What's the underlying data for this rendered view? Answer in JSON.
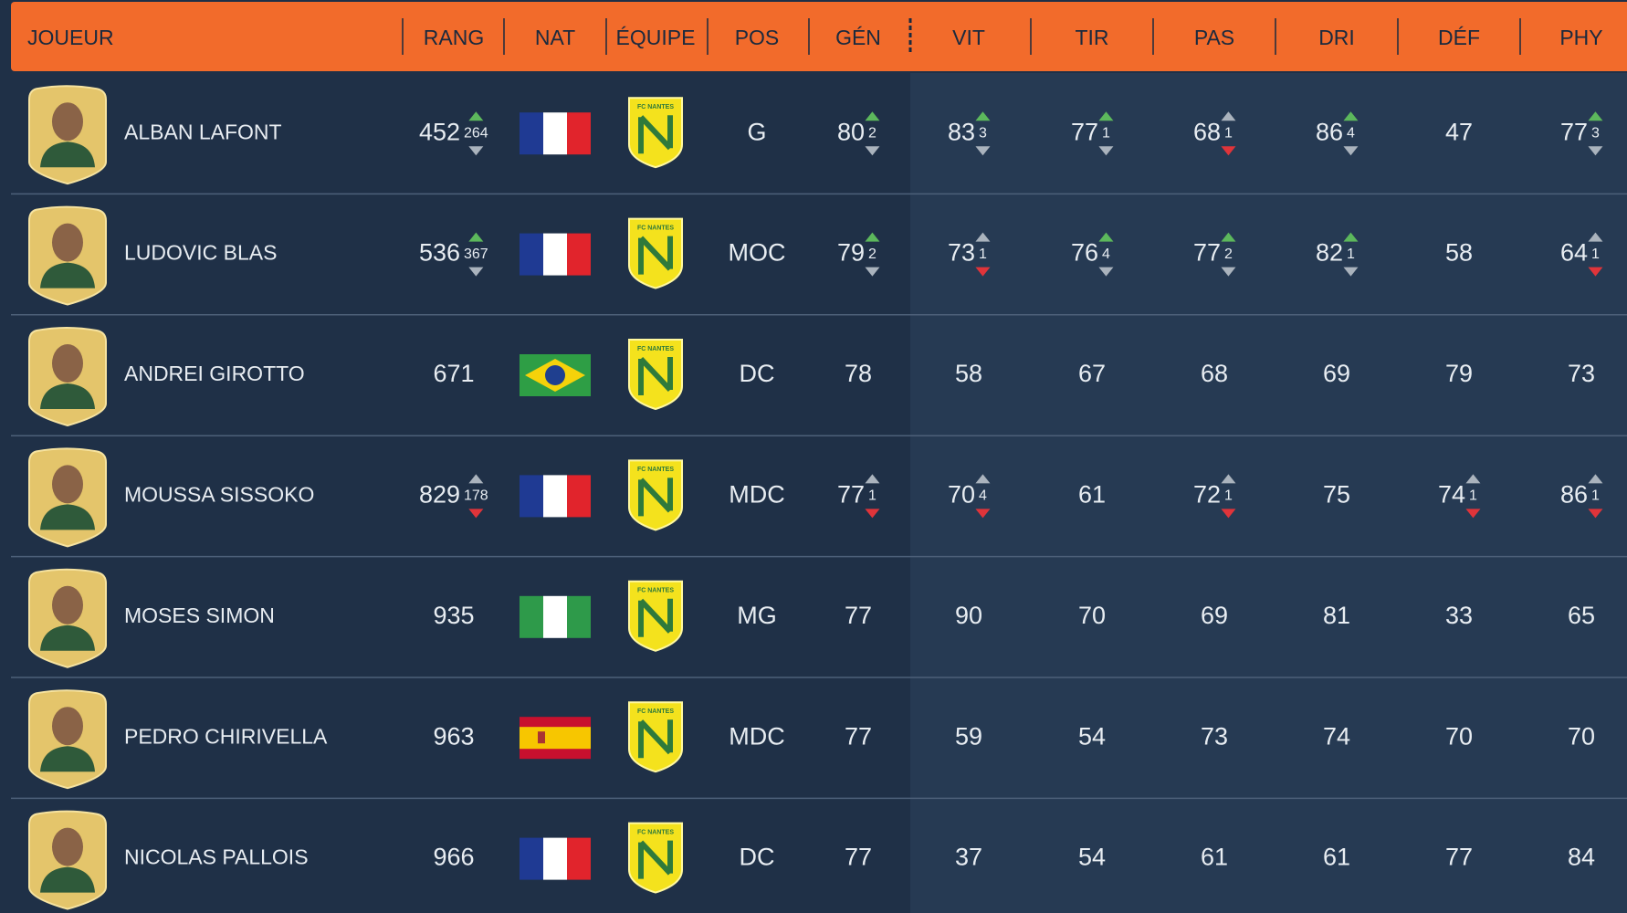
{
  "table": {
    "columns": [
      "JOUEUR",
      "RANG",
      "NAT",
      "ÉQUIPE",
      "POS",
      "GÉN",
      "VIT",
      "TIR",
      "PAS",
      "DRI",
      "DÉF",
      "PHY"
    ],
    "rows": [
      {
        "name": "ALBAN LAFONT",
        "rank": {
          "value": 452,
          "change": 264,
          "trend": "up"
        },
        "club": "FC NANTES",
        "position": "G",
        "ratings": [
          {
            "value": 80,
            "change": 2,
            "trend": "up"
          },
          {
            "value": 83,
            "change": 3,
            "trend": "up"
          },
          {
            "value": 77,
            "change": 1,
            "trend": "up"
          },
          {
            "value": 68,
            "change": 1,
            "trend": "down"
          },
          {
            "value": 86,
            "change": 4,
            "trend": "up"
          },
          {
            "value": 47
          },
          {
            "value": 77,
            "change": 3,
            "trend": "up"
          }
        ]
      },
      {
        "name": "LUDOVIC BLAS",
        "rank": {
          "value": 536,
          "change": 367,
          "trend": "up"
        },
        "club": "FC NANTES",
        "position": "MOC",
        "ratings": [
          {
            "value": 79,
            "change": 2,
            "trend": "up"
          },
          {
            "value": 73,
            "change": 1,
            "trend": "down"
          },
          {
            "value": 76,
            "change": 4,
            "trend": "up"
          },
          {
            "value": 77,
            "change": 2,
            "trend": "up"
          },
          {
            "value": 82,
            "change": 1,
            "trend": "up"
          },
          {
            "value": 58
          },
          {
            "value": 64,
            "change": 1,
            "trend": "down"
          }
        ]
      },
      {
        "name": "ANDREI GIROTTO",
        "rank": {
          "value": 671
        },
        "club": "FC NANTES",
        "position": "DC",
        "ratings": [
          {
            "value": 78
          },
          {
            "value": 58
          },
          {
            "value": 67
          },
          {
            "value": 68
          },
          {
            "value": 69
          },
          {
            "value": 79
          },
          {
            "value": 73
          }
        ]
      },
      {
        "name": "MOUSSA SISSOKO",
        "rank": {
          "value": 829,
          "change": 178,
          "trend": "down"
        },
        "club": "FC NANTES",
        "position": "MDC",
        "ratings": [
          {
            "value": 77,
            "change": 1,
            "trend": "down"
          },
          {
            "value": 70,
            "change": 4,
            "trend": "down"
          },
          {
            "value": 61
          },
          {
            "value": 72,
            "change": 1,
            "trend": "down"
          },
          {
            "value": 75
          },
          {
            "value": 74,
            "change": 1,
            "trend": "down"
          },
          {
            "value": 86,
            "change": 1,
            "trend": "down"
          }
        ]
      },
      {
        "name": "MOSES SIMON",
        "rank": {
          "value": 935
        },
        "club": "FC NANTES",
        "position": "MG",
        "ratings": [
          {
            "value": 77
          },
          {
            "value": 90
          },
          {
            "value": 70
          },
          {
            "value": 69
          },
          {
            "value": 81
          },
          {
            "value": 33
          },
          {
            "value": 65
          }
        ]
      },
      {
        "name": "PEDRO CHIRIVELLA",
        "rank": {
          "value": 963
        },
        "club": "FC NANTES",
        "position": "MDC",
        "ratings": [
          {
            "value": 77
          },
          {
            "value": 59
          },
          {
            "value": 54
          },
          {
            "value": 73
          },
          {
            "value": 74
          },
          {
            "value": 70
          },
          {
            "value": 70
          }
        ]
      },
      {
        "name": "NICOLAS PALLOIS",
        "rank": {
          "value": 966
        },
        "club": "FC NANTES",
        "position": "DC",
        "ratings": [
          {
            "value": 77
          },
          {
            "value": 37
          },
          {
            "value": 54
          },
          {
            "value": 61
          },
          {
            "value": 61
          },
          {
            "value": 77
          },
          {
            "value": 84
          }
        ]
      }
    ]
  }
}
